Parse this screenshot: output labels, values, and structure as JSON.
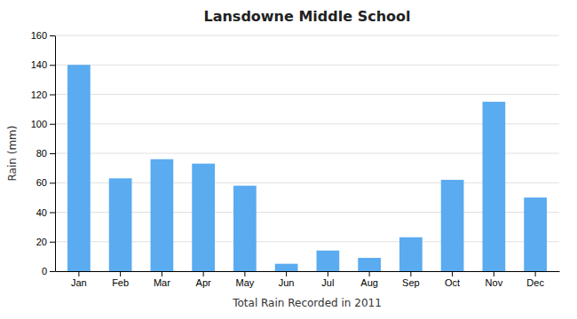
{
  "chart_data": {
    "type": "bar",
    "title": "Lansdowne Middle School",
    "xlabel": "Total Rain Recorded in 2011",
    "ylabel": "Rain (mm)",
    "categories": [
      "Jan",
      "Feb",
      "Mar",
      "Apr",
      "May",
      "Jun",
      "Jul",
      "Aug",
      "Sep",
      "Oct",
      "Nov",
      "Dec"
    ],
    "values": [
      140,
      63,
      76,
      73,
      58,
      5,
      14,
      9,
      23,
      62,
      115,
      50
    ],
    "color": "#5aabf0",
    "ylim": [
      0,
      160
    ],
    "yticks": [
      0,
      20,
      40,
      60,
      80,
      100,
      120,
      140,
      160
    ],
    "grid": true
  }
}
